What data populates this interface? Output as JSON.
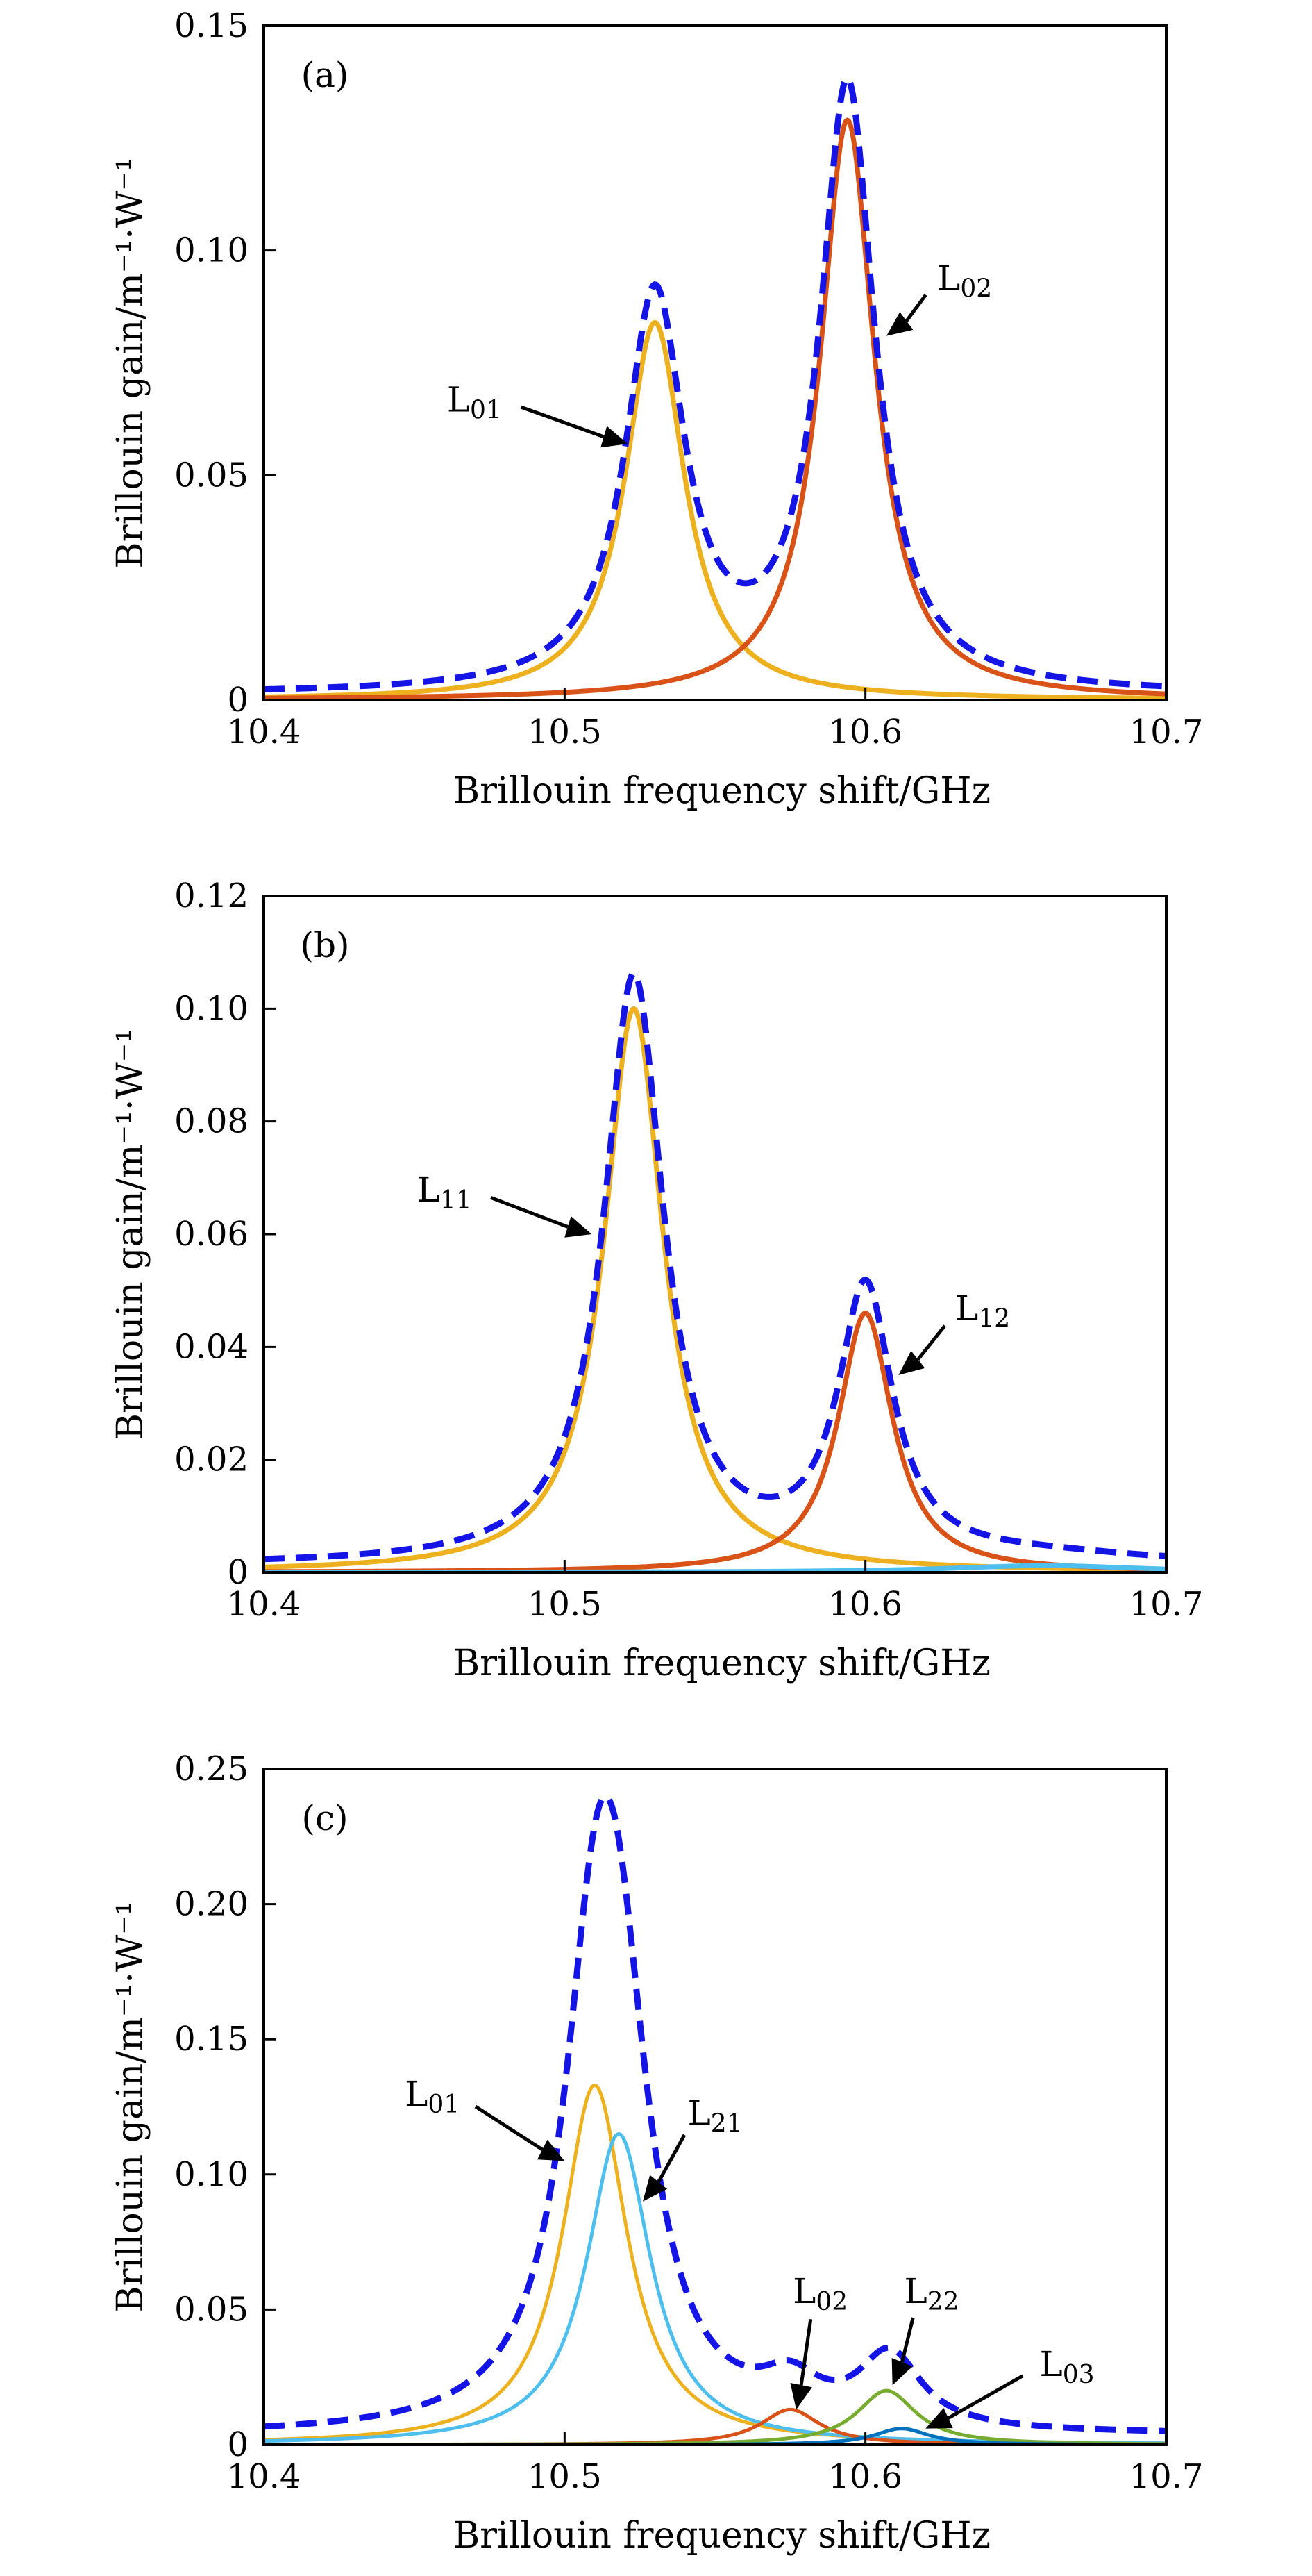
{
  "chart_data": [
    {
      "type": "line",
      "panel_label": "(a)",
      "xlabel": "Brillouin frequency shift/GHz",
      "ylabel": "Brillouin gain/m⁻¹·W⁻¹",
      "xlim": [
        10.4,
        10.7
      ],
      "ylim": [
        0,
        0.15
      ],
      "xticks": [
        10.4,
        10.5,
        10.6,
        10.7
      ],
      "xtick_labels": [
        "10.4",
        "10.5",
        "10.6",
        "10.7"
      ],
      "yticks": [
        0,
        0.05,
        0.1,
        0.15
      ],
      "ytick_labels": [
        "0",
        "0.05",
        "0.10",
        "0.15"
      ],
      "series": [
        {
          "mode": "L01",
          "color": "#EDB120",
          "style": "solid",
          "peak_x": 10.53,
          "peak_y": 0.084
        },
        {
          "mode": "L02",
          "color": "#D95319",
          "style": "solid",
          "peak_x": 10.594,
          "peak_y": 0.129
        },
        {
          "mode": "total",
          "color": "#1414E6",
          "style": "dashed"
        }
      ],
      "annotations": [
        {
          "base": "L",
          "sub": "01",
          "text_x": 10.47,
          "text_y": 0.067,
          "arrow_x": 10.521,
          "arrow_y": 0.057
        },
        {
          "base": "L",
          "sub": "02",
          "text_x": 10.633,
          "text_y": 0.094,
          "arrow_x": 10.607,
          "arrow_y": 0.081
        }
      ]
    },
    {
      "type": "line",
      "panel_label": "(b)",
      "xlabel": "Brillouin frequency shift/GHz",
      "ylabel": "Brillouin gain/m⁻¹·W⁻¹",
      "xlim": [
        10.4,
        10.7
      ],
      "ylim": [
        0,
        0.12
      ],
      "xticks": [
        10.4,
        10.5,
        10.6,
        10.7
      ],
      "xtick_labels": [
        "10.4",
        "10.5",
        "10.6",
        "10.7"
      ],
      "yticks": [
        0,
        0.02,
        0.04,
        0.06,
        0.08,
        0.1,
        0.12
      ],
      "ytick_labels": [
        "0",
        "0.02",
        "0.04",
        "0.06",
        "0.08",
        "0.10",
        "0.12"
      ],
      "series": [
        {
          "mode": "L11",
          "color": "#EDB120",
          "style": "solid",
          "peak_x": 10.523,
          "peak_y": 0.1
        },
        {
          "mode": "L12",
          "color": "#D95319",
          "style": "solid",
          "peak_x": 10.6,
          "peak_y": 0.046
        },
        {
          "mode": "minor",
          "color": "#4DBEEE",
          "style": "solid",
          "peak_x": 10.66,
          "peak_y": 0.0012
        },
        {
          "mode": "total",
          "color": "#1414E6",
          "style": "dashed"
        }
      ],
      "annotations": [
        {
          "base": "L",
          "sub": "11",
          "text_x": 10.46,
          "text_y": 0.068,
          "arrow_x": 10.509,
          "arrow_y": 0.06
        },
        {
          "base": "L",
          "sub": "12",
          "text_x": 10.639,
          "text_y": 0.047,
          "arrow_x": 10.611,
          "arrow_y": 0.035
        }
      ]
    },
    {
      "type": "line",
      "panel_label": "(c)",
      "xlabel": "Brillouin frequency shift/GHz",
      "ylabel": "Brillouin gain/m⁻¹·W⁻¹",
      "xlim": [
        10.4,
        10.7
      ],
      "ylim": [
        0,
        0.25
      ],
      "xticks": [
        10.4,
        10.5,
        10.6,
        10.7
      ],
      "xtick_labels": [
        "10.4",
        "10.5",
        "10.6",
        "10.7"
      ],
      "yticks": [
        0,
        0.05,
        0.1,
        0.15,
        0.2,
        0.25
      ],
      "ytick_labels": [
        "0",
        "0.05",
        "0.10",
        "0.15",
        "0.20",
        "0.25"
      ],
      "series": [
        {
          "mode": "L01",
          "color": "#EDB120",
          "style": "solid",
          "peak_x": 10.51,
          "peak_y": 0.133
        },
        {
          "mode": "L21",
          "color": "#4DBEEE",
          "style": "solid",
          "peak_x": 10.518,
          "peak_y": 0.115
        },
        {
          "mode": "L02",
          "color": "#D95319",
          "style": "solid",
          "peak_x": 10.575,
          "peak_y": 0.013
        },
        {
          "mode": "L22",
          "color": "#77AC30",
          "style": "solid",
          "peak_x": 10.607,
          "peak_y": 0.02
        },
        {
          "mode": "L03",
          "color": "#0072BD",
          "style": "solid",
          "peak_x": 10.612,
          "peak_y": 0.006
        },
        {
          "mode": "total",
          "color": "#1414E6",
          "style": "dashed"
        }
      ],
      "annotations": [
        {
          "base": "L",
          "sub": "01",
          "text_x": 10.456,
          "text_y": 0.13,
          "arrow_x": 10.5,
          "arrow_y": 0.105
        },
        {
          "base": "L",
          "sub": "21",
          "text_x": 10.55,
          "text_y": 0.123,
          "arrow_x": 10.526,
          "arrow_y": 0.09
        },
        {
          "base": "L",
          "sub": "02",
          "text_x": 10.585,
          "text_y": 0.057,
          "arrow_x": 10.577,
          "arrow_y": 0.013
        },
        {
          "base": "L",
          "sub": "22",
          "text_x": 10.622,
          "text_y": 0.057,
          "arrow_x": 10.609,
          "arrow_y": 0.022
        },
        {
          "base": "L",
          "sub": "03",
          "text_x": 10.667,
          "text_y": 0.03,
          "arrow_x": 10.62,
          "arrow_y": 0.006
        }
      ]
    }
  ]
}
